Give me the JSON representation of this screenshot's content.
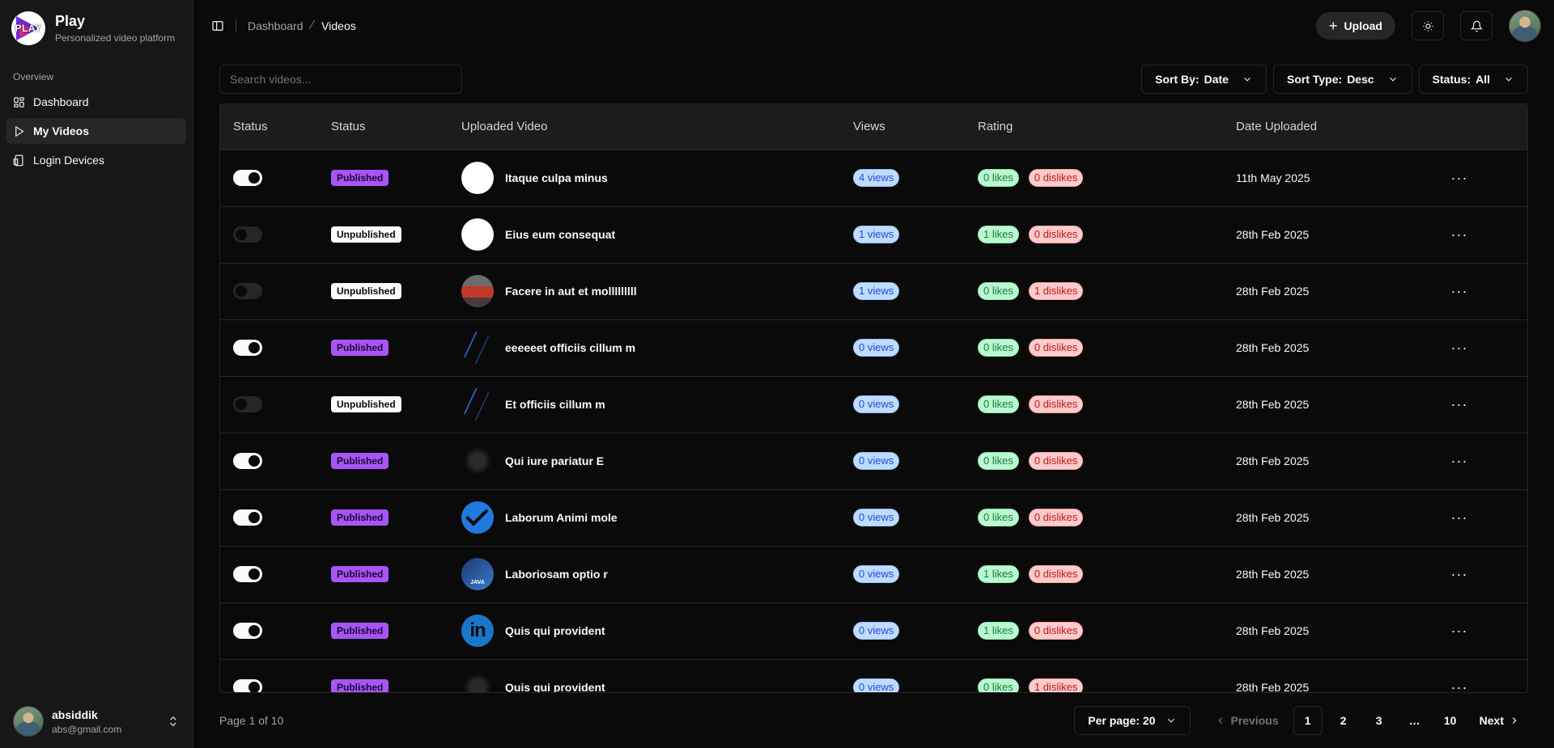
{
  "brand": {
    "logo_text": "PLAY",
    "title": "Play",
    "subtitle": "Personalized video platform"
  },
  "sidebar": {
    "group_label": "Overview",
    "items": [
      {
        "label": "Dashboard",
        "icon": "layout-grid-icon",
        "active": false
      },
      {
        "label": "My Videos",
        "icon": "play-icon",
        "active": true
      },
      {
        "label": "Login Devices",
        "icon": "devices-icon",
        "active": false
      }
    ],
    "user": {
      "name": "absiddik",
      "email": "abs@gmail.com"
    }
  },
  "topbar": {
    "breadcrumb": [
      "Dashboard",
      "Videos"
    ],
    "upload_label": "Upload"
  },
  "search": {
    "placeholder": "Search videos...",
    "value": ""
  },
  "filters": {
    "sort_by": {
      "label": "Sort By:",
      "value": "Date"
    },
    "sort_type": {
      "label": "Sort Type:",
      "value": "Desc"
    },
    "status": {
      "label": "Status:",
      "value": "All"
    }
  },
  "table": {
    "headers": [
      "Status",
      "Status",
      "Uploaded Video",
      "Views",
      "Rating",
      "Date Uploaded"
    ],
    "rows": [
      {
        "enabled": true,
        "status": "Published",
        "thumb": "white",
        "title": "Itaque culpa minus",
        "views": "4 views",
        "likes": "0 likes",
        "dislikes": "0 dislikes",
        "date": "11th May 2025"
      },
      {
        "enabled": false,
        "status": "Unpublished",
        "thumb": "white",
        "title": "Eius eum consequat",
        "views": "1 views",
        "likes": "1 likes",
        "dislikes": "0 dislikes",
        "date": "28th Feb 2025"
      },
      {
        "enabled": false,
        "status": "Unpublished",
        "thumb": "red",
        "title": "Facere in aut et molllllllll",
        "views": "1 views",
        "likes": "0 likes",
        "dislikes": "1 dislikes",
        "date": "28th Feb 2025"
      },
      {
        "enabled": true,
        "status": "Published",
        "thumb": "streak",
        "title": "eeeeeet officiis cillum m",
        "views": "0 views",
        "likes": "0 likes",
        "dislikes": "0 dislikes",
        "date": "28th Feb 2025"
      },
      {
        "enabled": false,
        "status": "Unpublished",
        "thumb": "streak",
        "title": "Et officiis cillum m",
        "views": "0 views",
        "likes": "0 likes",
        "dislikes": "0 dislikes",
        "date": "28th Feb 2025"
      },
      {
        "enabled": true,
        "status": "Published",
        "thumb": "blur",
        "title": "Qui iure pariatur E",
        "views": "0 views",
        "likes": "0 likes",
        "dislikes": "0 dislikes",
        "date": "28th Feb 2025"
      },
      {
        "enabled": true,
        "status": "Published",
        "thumb": "blue-check",
        "title": "Laborum Animi mole",
        "views": "0 views",
        "likes": "0 likes",
        "dislikes": "0 dislikes",
        "date": "28th Feb 2025"
      },
      {
        "enabled": true,
        "status": "Published",
        "thumb": "java",
        "thumb_text": "JAVA",
        "title": "Laboriosam optio r",
        "views": "0 views",
        "likes": "1 likes",
        "dislikes": "0 dislikes",
        "date": "28th Feb 2025"
      },
      {
        "enabled": true,
        "status": "Published",
        "thumb": "linkedin",
        "thumb_text": "in",
        "title": "Quis qui provident",
        "views": "0 views",
        "likes": "1 likes",
        "dislikes": "0 dislikes",
        "date": "28th Feb 2025"
      },
      {
        "enabled": true,
        "status": "Published",
        "thumb": "blur",
        "title": "Quis qui provident",
        "views": "0 views",
        "likes": "0 likes",
        "dislikes": "1 dislikes",
        "date": "28th Feb 2025"
      }
    ]
  },
  "pagination": {
    "info": "Page 1 of 10",
    "per_page": "Per page: 20",
    "previous": "Previous",
    "next": "Next",
    "pages": [
      "1",
      "2",
      "3",
      "…",
      "10"
    ],
    "current": "1"
  }
}
